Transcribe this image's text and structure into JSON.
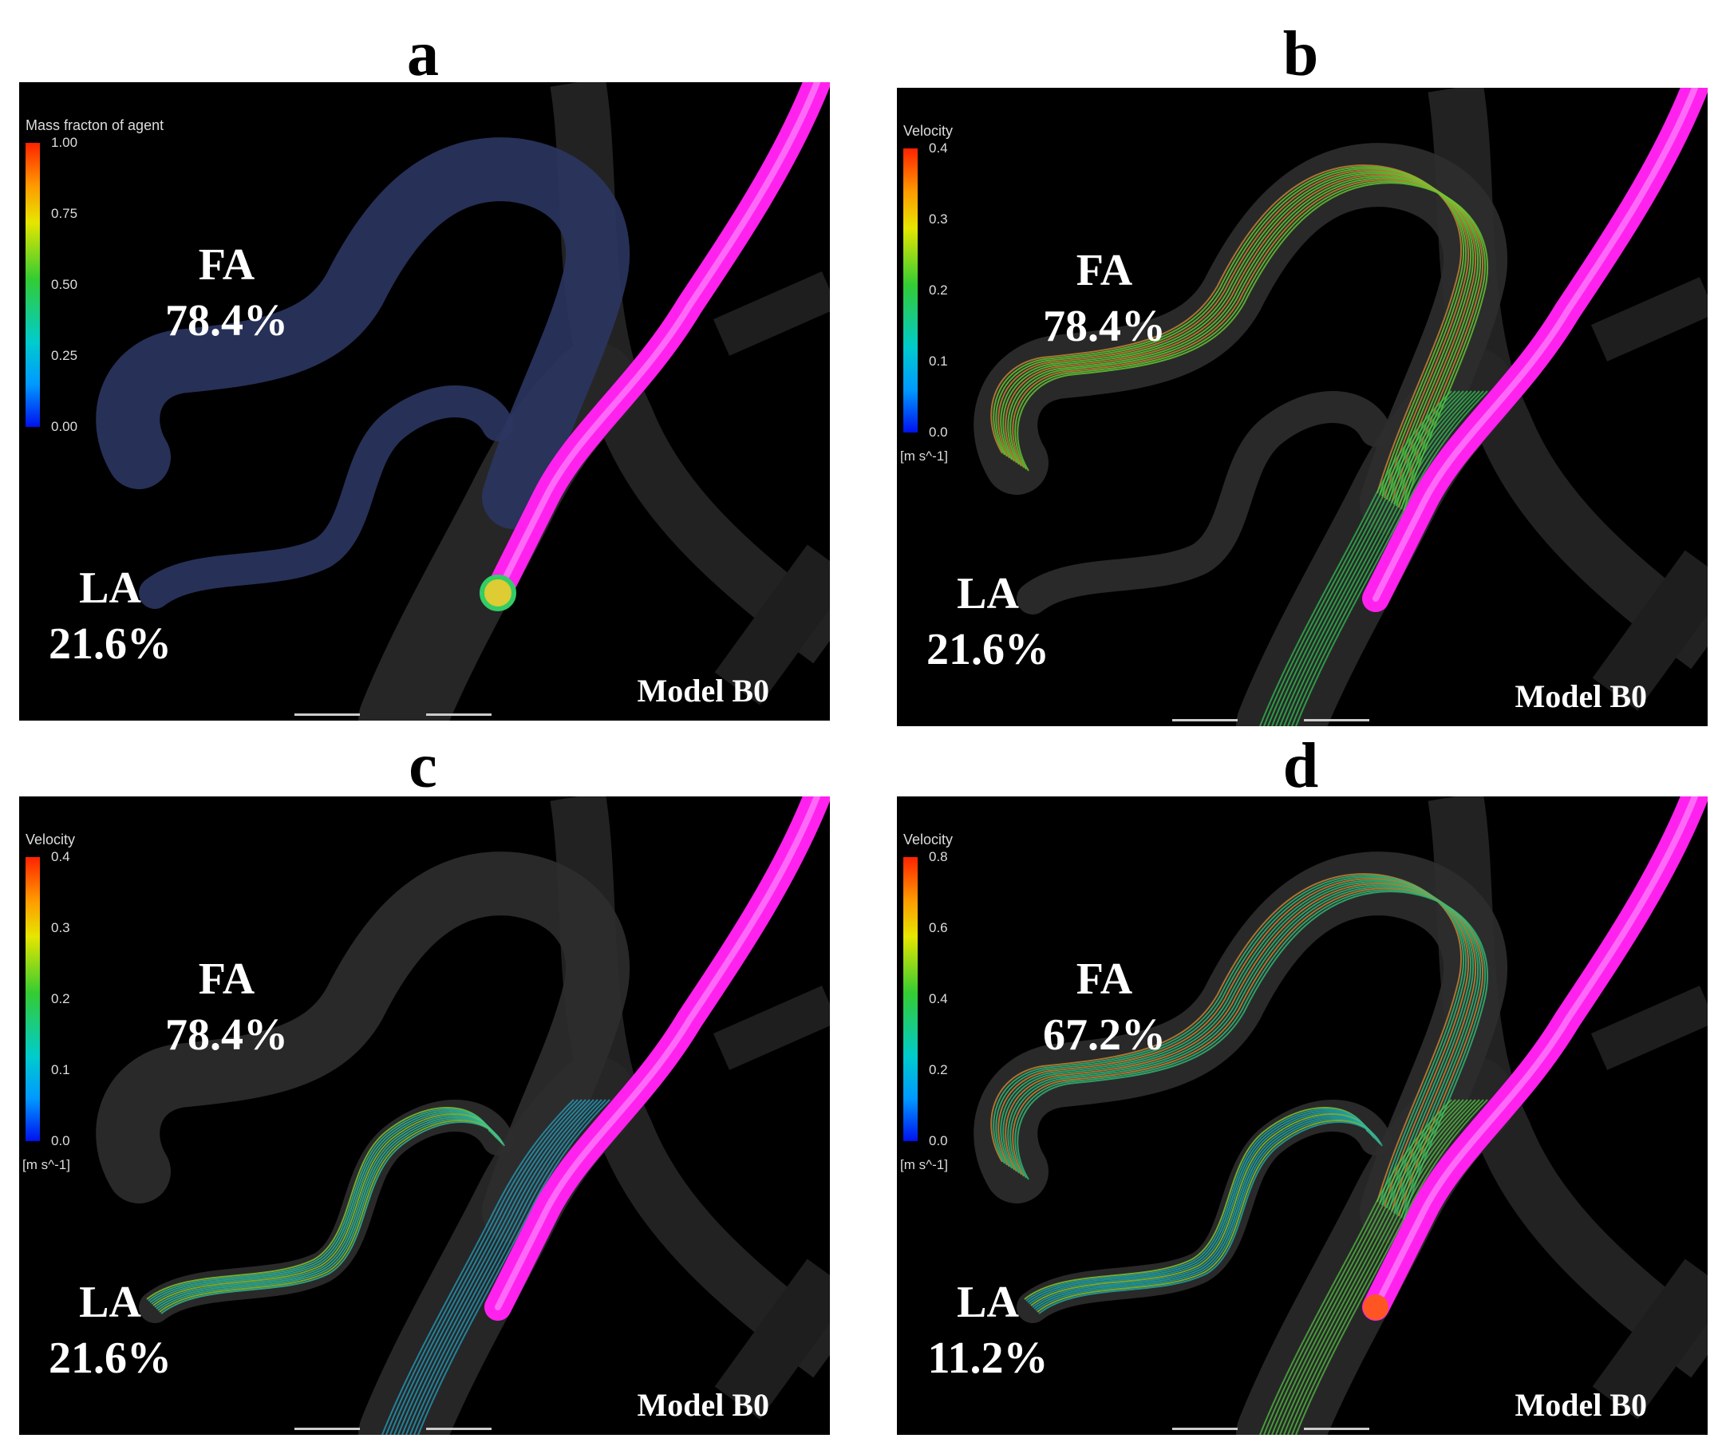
{
  "panels": [
    {
      "letter": "a",
      "legend": {
        "title": "Mass fracton of agent",
        "ticks": [
          "1.00",
          "0.75",
          "0.50",
          "0.25",
          "0.00"
        ],
        "unit": ""
      },
      "fa_label": "FA",
      "fa_value": "78.4%",
      "la_label": "LA",
      "la_value": "21.6%",
      "model": "Model B0"
    },
    {
      "letter": "b",
      "legend": {
        "title": "Velocity",
        "ticks": [
          "0.4",
          "0.3",
          "0.2",
          "0.1",
          "0.0"
        ],
        "unit": "[m s^-1]"
      },
      "fa_label": "FA",
      "fa_value": "78.4%",
      "la_label": "LA",
      "la_value": "21.6%",
      "model": "Model B0"
    },
    {
      "letter": "c",
      "legend": {
        "title": "Velocity",
        "ticks": [
          "0.4",
          "0.3",
          "0.2",
          "0.1",
          "0.0"
        ],
        "unit": "[m s^-1]"
      },
      "fa_label": "FA",
      "fa_value": "78.4%",
      "la_label": "LA",
      "la_value": "21.6%",
      "model": "Model B0"
    },
    {
      "letter": "d",
      "legend": {
        "title": "Velocity",
        "ticks": [
          "0.8",
          "0.6",
          "0.4",
          "0.2",
          "0.0"
        ],
        "unit": "[m s^-1]"
      },
      "fa_label": "FA",
      "fa_value": "67.2%",
      "la_label": "LA",
      "la_value": "11.2%",
      "model": "Model B0"
    }
  ],
  "colors": {
    "catheter": "#ff22ee",
    "vessel": "#2a2a2a",
    "flow": "#33cc55"
  }
}
